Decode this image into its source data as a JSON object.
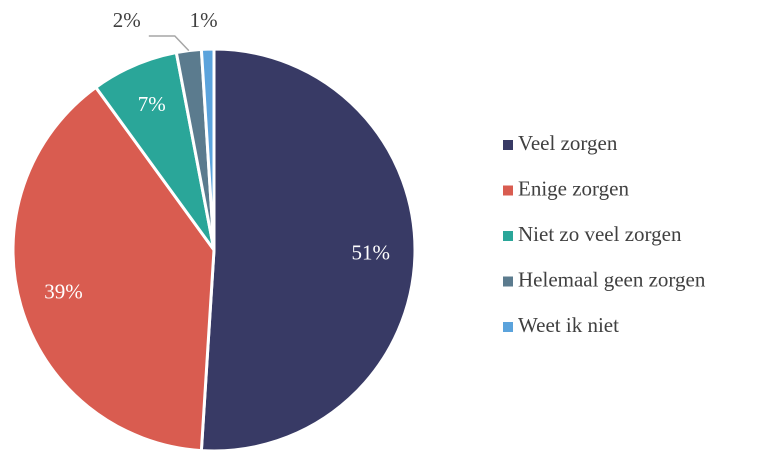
{
  "chart_data": {
    "type": "pie",
    "categories": [
      "Veel zorgen",
      "Enige zorgen",
      "Niet zo veel zorgen",
      "Helemaal geen zorgen",
      "Weet ik niet"
    ],
    "values": [
      51,
      39,
      7,
      2,
      1
    ],
    "value_labels": [
      "51%",
      "39%",
      "7%",
      "2%",
      "1%"
    ],
    "colors": [
      "#383a65",
      "#d95c50",
      "#2aa699",
      "#5b7b8e",
      "#5ba3dc"
    ],
    "legend": "right"
  }
}
